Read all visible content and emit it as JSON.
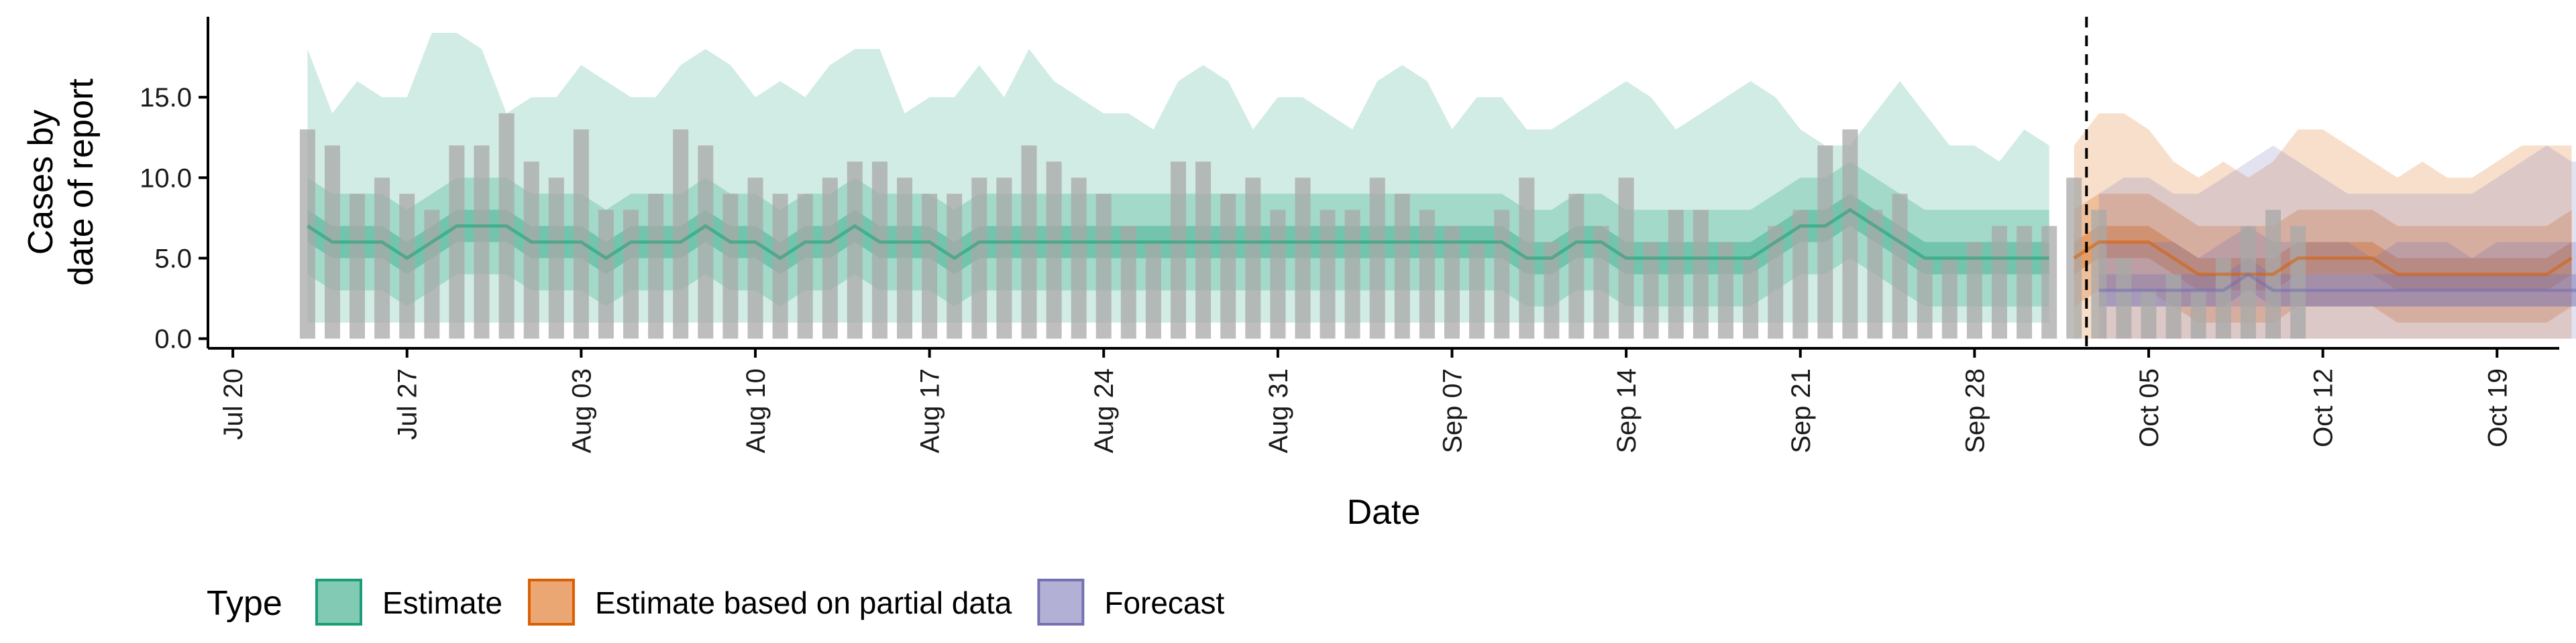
{
  "chart_data": {
    "type": "bar+area",
    "xlabel": "Date",
    "ylabel_lines": [
      "Cases by",
      "date of report"
    ],
    "ylim": [
      -0.6,
      20
    ],
    "yticks": [
      0,
      5,
      10,
      15
    ],
    "ytick_labels": [
      "0.0",
      "5.0",
      "10.0",
      "15.0"
    ],
    "x_start": "Jul 19",
    "x_end": "Oct 19",
    "xtick_days": [
      1,
      8,
      15,
      22,
      29,
      36,
      43,
      50,
      57,
      64,
      71,
      78,
      85,
      92
    ],
    "xtick_labels": [
      "Jul 20",
      "Jul 27",
      "Aug 03",
      "Aug 10",
      "Aug 17",
      "Aug 24",
      "Aug 31",
      "Sep 07",
      "Sep 14",
      "Sep 21",
      "Sep 28",
      "Oct 05",
      "Oct 12",
      "Oct 19"
    ],
    "forecast_date": "Oct 02",
    "forecast_day": 75.5,
    "bar_color": "#a8a8a8",
    "bars": {
      "start": "Jul 23",
      "start_day": 4,
      "values": [
        13,
        12,
        9,
        10,
        9,
        8,
        12,
        12,
        14,
        11,
        10,
        13,
        8,
        8,
        9,
        13,
        12,
        9,
        10,
        9,
        9,
        10,
        11,
        11,
        10,
        9,
        9,
        10,
        10,
        12,
        11,
        10,
        9,
        7,
        6,
        11,
        11,
        9,
        10,
        8,
        10,
        8,
        8,
        10,
        9,
        8,
        7,
        6,
        8,
        10,
        6,
        9,
        7,
        10,
        6,
        8,
        8,
        6,
        5,
        7,
        8,
        12,
        13,
        8,
        9,
        5,
        5,
        6,
        7,
        7,
        7,
        10,
        8,
        5,
        3,
        4,
        3,
        5,
        7,
        8,
        7
      ]
    },
    "series": [
      {
        "name": "Estimate",
        "color": "#1b9e77",
        "start_day": 4,
        "median": [
          7,
          6,
          6,
          6,
          5,
          6,
          7,
          7,
          7,
          6,
          6,
          6,
          5,
          6,
          6,
          6,
          7,
          6,
          6,
          5,
          6,
          6,
          7,
          6,
          6,
          6,
          5,
          6,
          6,
          6,
          6,
          6,
          6,
          6,
          6,
          6,
          6,
          6,
          6,
          6,
          6,
          6,
          6,
          6,
          6,
          6,
          6,
          6,
          6,
          5,
          5,
          6,
          6,
          5,
          5,
          5,
          5,
          5,
          5,
          6,
          7,
          7,
          8,
          7,
          6,
          5,
          5,
          5,
          5,
          5,
          5
        ],
        "inner": [
          [
            6,
            5,
            5,
            5,
            4,
            5,
            6,
            6,
            6,
            5,
            5,
            5,
            4,
            5,
            5,
            5,
            6,
            5,
            5,
            4,
            5,
            5,
            6,
            5,
            5,
            5,
            4,
            5,
            5,
            5,
            5,
            5,
            5,
            5,
            5,
            5,
            5,
            5,
            5,
            5,
            5,
            5,
            5,
            5,
            5,
            5,
            5,
            5,
            5,
            4,
            4,
            5,
            5,
            4,
            4,
            4,
            4,
            4,
            4,
            5,
            6,
            6,
            7,
            6,
            5,
            4,
            4,
            4,
            4,
            4,
            4
          ],
          [
            8,
            7,
            7,
            7,
            6,
            7,
            8,
            8,
            8,
            7,
            7,
            7,
            6,
            7,
            7,
            7,
            8,
            7,
            7,
            6,
            7,
            7,
            8,
            7,
            7,
            7,
            6,
            7,
            7,
            7,
            7,
            7,
            7,
            7,
            7,
            7,
            7,
            7,
            7,
            7,
            7,
            7,
            7,
            7,
            7,
            7,
            7,
            7,
            7,
            6,
            6,
            7,
            7,
            6,
            6,
            6,
            6,
            6,
            6,
            7,
            8,
            8,
            9,
            8,
            7,
            6,
            6,
            6,
            6,
            6,
            6
          ]
        ],
        "mid": [
          [
            4,
            3,
            3,
            3,
            2,
            3,
            4,
            4,
            4,
            3,
            3,
            3,
            2,
            3,
            3,
            3,
            4,
            3,
            3,
            2,
            3,
            3,
            4,
            3,
            3,
            3,
            2,
            3,
            3,
            3,
            3,
            3,
            3,
            3,
            3,
            3,
            3,
            3,
            3,
            3,
            3,
            3,
            3,
            3,
            3,
            3,
            3,
            3,
            3,
            2,
            2,
            3,
            3,
            2,
            2,
            2,
            2,
            2,
            2,
            3,
            4,
            4,
            5,
            4,
            3,
            2,
            2,
            2,
            2,
            2,
            2
          ],
          [
            10,
            9,
            9,
            9,
            8,
            9,
            10,
            10,
            10,
            9,
            9,
            9,
            8,
            9,
            9,
            9,
            10,
            9,
            9,
            8,
            9,
            9,
            10,
            9,
            9,
            9,
            8,
            9,
            9,
            9,
            9,
            9,
            9,
            9,
            9,
            9,
            9,
            9,
            9,
            9,
            9,
            9,
            9,
            9,
            9,
            9,
            9,
            9,
            9,
            8,
            8,
            9,
            9,
            8,
            8,
            8,
            8,
            8,
            8,
            9,
            10,
            10,
            11,
            10,
            9,
            8,
            8,
            8,
            8,
            8,
            8
          ]
        ],
        "outer": [
          [
            1,
            1,
            1,
            1,
            1,
            1,
            1,
            1,
            1,
            1,
            1,
            1,
            1,
            1,
            1,
            1,
            1,
            1,
            1,
            1,
            1,
            1,
            1,
            1,
            1,
            1,
            1,
            1,
            1,
            1,
            1,
            1,
            1,
            1,
            1,
            1,
            1,
            1,
            1,
            1,
            1,
            1,
            1,
            1,
            1,
            1,
            1,
            1,
            1,
            1,
            1,
            1,
            1,
            1,
            1,
            1,
            1,
            1,
            1,
            1,
            1,
            1,
            1,
            1,
            1,
            1,
            1,
            1,
            1,
            1,
            1
          ],
          [
            18,
            14,
            16,
            15,
            15,
            19,
            19,
            18,
            14,
            15,
            15,
            17,
            16,
            15,
            15,
            17,
            18,
            17,
            15,
            16,
            15,
            17,
            18,
            18,
            14,
            15,
            15,
            17,
            15,
            18,
            16,
            15,
            14,
            14,
            13,
            16,
            17,
            16,
            13,
            15,
            15,
            14,
            13,
            16,
            17,
            16,
            13,
            15,
            15,
            13,
            13,
            14,
            15,
            16,
            15,
            13,
            14,
            15,
            16,
            15,
            13,
            12,
            12,
            14,
            16,
            14,
            12,
            12,
            11,
            13,
            12
          ]
        ]
      },
      {
        "name": "Estimate based on partial data",
        "color": "#d95f02",
        "start_day": 75,
        "median": [
          5,
          6,
          6,
          6,
          5,
          4,
          4,
          4,
          4,
          5,
          5,
          5,
          5,
          4,
          4,
          4,
          4,
          4,
          4,
          4,
          5
        ],
        "inner": [
          [
            4,
            5,
            5,
            5,
            4,
            3,
            3,
            3,
            3,
            4,
            4,
            4,
            4,
            3,
            3,
            3,
            3,
            3,
            3,
            3,
            4
          ],
          [
            6,
            7,
            7,
            7,
            6,
            5,
            5,
            5,
            5,
            6,
            6,
            6,
            6,
            5,
            5,
            5,
            5,
            5,
            5,
            5,
            6
          ]
        ],
        "mid": [
          [
            2,
            3,
            3,
            3,
            2,
            1,
            1,
            1,
            1,
            2,
            2,
            2,
            2,
            1,
            1,
            1,
            1,
            1,
            1,
            1,
            2
          ],
          [
            8,
            9,
            9,
            9,
            8,
            7,
            7,
            7,
            7,
            8,
            8,
            8,
            8,
            7,
            7,
            7,
            7,
            7,
            7,
            7,
            8
          ]
        ],
        "outer": [
          [
            0,
            0,
            0,
            0,
            0,
            0,
            0,
            0,
            0,
            0,
            0,
            0,
            0,
            0,
            0,
            0,
            0,
            0,
            0,
            0,
            0
          ],
          [
            12,
            14,
            14,
            13,
            11,
            10,
            11,
            10,
            11,
            13,
            13,
            12,
            11,
            10,
            11,
            10,
            10,
            11,
            12,
            12,
            12
          ]
        ]
      },
      {
        "name": "Forecast",
        "color": "#7570b3",
        "start_day": 76,
        "median": [
          3,
          3,
          3,
          3,
          3,
          3,
          4,
          3,
          3,
          3,
          3,
          3,
          3,
          3,
          3,
          3,
          3,
          3,
          3,
          3,
          3
        ],
        "inner": [
          [
            2,
            2,
            2,
            2,
            2,
            2,
            3,
            2,
            2,
            2,
            2,
            2,
            2,
            2,
            2,
            2,
            2,
            2,
            2,
            2,
            2
          ],
          [
            4,
            4,
            4,
            4,
            4,
            4,
            5,
            4,
            4,
            4,
            4,
            4,
            4,
            4,
            4,
            4,
            4,
            4,
            4,
            4,
            4
          ]
        ],
        "mid": [
          [
            2,
            2,
            2,
            2,
            2,
            2,
            2,
            2,
            2,
            2,
            2,
            2,
            2,
            2,
            2,
            2,
            2,
            2,
            2,
            2,
            2
          ],
          [
            6,
            6,
            6,
            6,
            5,
            6,
            7,
            6,
            6,
            6,
            6,
            5,
            6,
            6,
            6,
            5,
            6,
            6,
            6,
            6,
            6
          ]
        ],
        "outer": [
          [
            0,
            0,
            0,
            0,
            0,
            0,
            0,
            0,
            0,
            0,
            0,
            0,
            0,
            0,
            0,
            0,
            0,
            0,
            0,
            0,
            0
          ],
          [
            9,
            10,
            10,
            9,
            9,
            10,
            11,
            12,
            11,
            10,
            9,
            9,
            9,
            9,
            9,
            9,
            10,
            11,
            12,
            11,
            11
          ]
        ]
      }
    ],
    "legend": {
      "title": "Type",
      "position": "bottom-left",
      "entries": [
        "Estimate",
        "Estimate based on partial data",
        "Forecast"
      ]
    }
  }
}
